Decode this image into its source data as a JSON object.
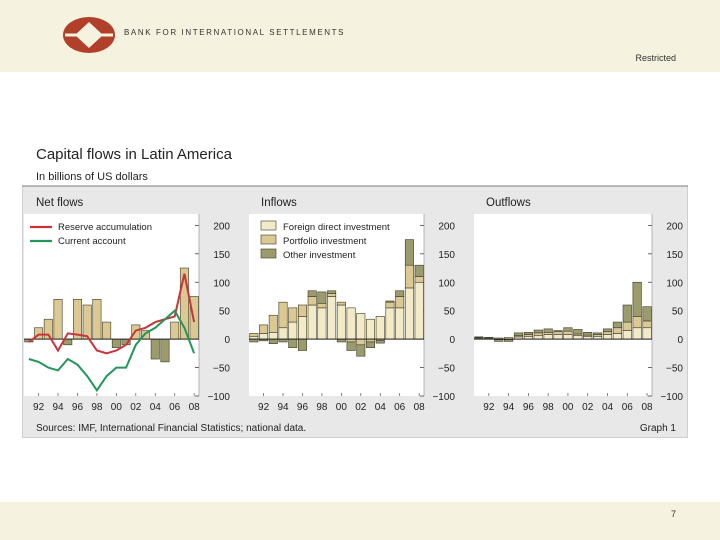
{
  "header": {
    "bank_name": "BANK FOR INTERNATIONAL SETTLEMENTS",
    "classification": "Restricted"
  },
  "footer": {
    "page_number": "7"
  },
  "figure": {
    "title": "Capital flows in Latin America",
    "subtitle": "In billions of US dollars",
    "source": "Sources: IMF, International Financial Statistics; national data.",
    "graph_label": "Graph 1"
  },
  "colors": {
    "fdi": "#f3ebc7",
    "portfolio": "#dcc892",
    "other": "#9c9b6c",
    "reserve_line": "#c8343a",
    "current_line": "#23955a",
    "panel_bg": "#ffffff",
    "frame_bg": "#e8e8e8"
  },
  "chart_data": [
    {
      "type": "bar",
      "title": "Net flows",
      "categories": [
        "91",
        "92",
        "93",
        "94",
        "95",
        "96",
        "97",
        "98",
        "99",
        "00",
        "01",
        "02",
        "03",
        "04",
        "05",
        "06",
        "07",
        "08"
      ],
      "x_tick_labels": [
        "92",
        "94",
        "96",
        "98",
        "00",
        "02",
        "04",
        "06",
        "08"
      ],
      "ylim": [
        -100,
        220
      ],
      "y_ticks": [
        "200",
        "150",
        "100",
        "50",
        "0",
        "−50",
        "−100"
      ],
      "series": [
        {
          "name": "",
          "values": [
            -5,
            20,
            35,
            70,
            -10,
            70,
            60,
            70,
            30,
            -15,
            -10,
            25,
            15,
            -35,
            -40,
            30,
            125,
            75
          ],
          "style": "bar-outline",
          "color_key": "portfolio"
        }
      ],
      "lines": [
        {
          "name": "Reserve accumulation",
          "values": [
            -5,
            8,
            8,
            -20,
            10,
            8,
            5,
            -20,
            -25,
            -20,
            -10,
            15,
            20,
            30,
            35,
            40,
            115,
            30
          ]
        },
        {
          "name": "Current account",
          "values": [
            -35,
            -40,
            -50,
            -55,
            -35,
            -45,
            -65,
            -90,
            -65,
            -50,
            -50,
            -10,
            10,
            20,
            35,
            50,
            20,
            -25
          ]
        }
      ],
      "legend": "top-left"
    },
    {
      "type": "bar",
      "title": "Inflows",
      "stacked": true,
      "categories": [
        "91",
        "92",
        "93",
        "94",
        "95",
        "96",
        "97",
        "98",
        "99",
        "00",
        "01",
        "02",
        "03",
        "04",
        "05",
        "06",
        "07",
        "08"
      ],
      "x_tick_labels": [
        "92",
        "94",
        "96",
        "98",
        "00",
        "02",
        "04",
        "06",
        "08"
      ],
      "ylim": [
        -100,
        220
      ],
      "y_ticks": [
        "200",
        "150",
        "100",
        "50",
        "0",
        "−50",
        "−100"
      ],
      "series": [
        {
          "name": "Foreign direct investment",
          "values": [
            5,
            10,
            12,
            20,
            30,
            40,
            60,
            55,
            75,
            60,
            55,
            45,
            35,
            40,
            55,
            55,
            90,
            100
          ]
        },
        {
          "name": "Portfolio investment",
          "values": [
            5,
            15,
            30,
            45,
            25,
            20,
            15,
            8,
            5,
            5,
            -5,
            -10,
            -5,
            -2,
            10,
            20,
            40,
            10
          ]
        },
        {
          "name": "Other investment",
          "values": [
            -5,
            -3,
            -8,
            -5,
            -15,
            -20,
            10,
            20,
            5,
            -5,
            -15,
            -20,
            -10,
            -5,
            2,
            10,
            45,
            20
          ]
        }
      ],
      "legend": "top-left"
    },
    {
      "type": "bar",
      "title": "Outflows",
      "stacked": true,
      "categories": [
        "91",
        "92",
        "93",
        "94",
        "95",
        "96",
        "97",
        "98",
        "99",
        "00",
        "01",
        "02",
        "03",
        "04",
        "05",
        "06",
        "07",
        "08"
      ],
      "x_tick_labels": [
        "92",
        "94",
        "96",
        "98",
        "00",
        "02",
        "04",
        "06",
        "08"
      ],
      "ylim": [
        -100,
        220
      ],
      "y_ticks": [
        "200",
        "150",
        "100",
        "50",
        "0",
        "−50",
        "−100"
      ],
      "series": [
        {
          "name": "Foreign direct investment",
          "values": [
            2,
            2,
            2,
            3,
            4,
            5,
            6,
            8,
            8,
            8,
            6,
            5,
            5,
            8,
            10,
            15,
            20,
            20
          ]
        },
        {
          "name": "Portfolio investment",
          "values": [
            1,
            1,
            -1,
            -1,
            2,
            3,
            5,
            4,
            5,
            6,
            3,
            2,
            3,
            5,
            10,
            15,
            20,
            12
          ]
        },
        {
          "name": "Other investment",
          "values": [
            1,
            0,
            -3,
            -3,
            5,
            4,
            5,
            6,
            2,
            6,
            8,
            5,
            3,
            5,
            10,
            30,
            60,
            25
          ]
        }
      ]
    }
  ]
}
